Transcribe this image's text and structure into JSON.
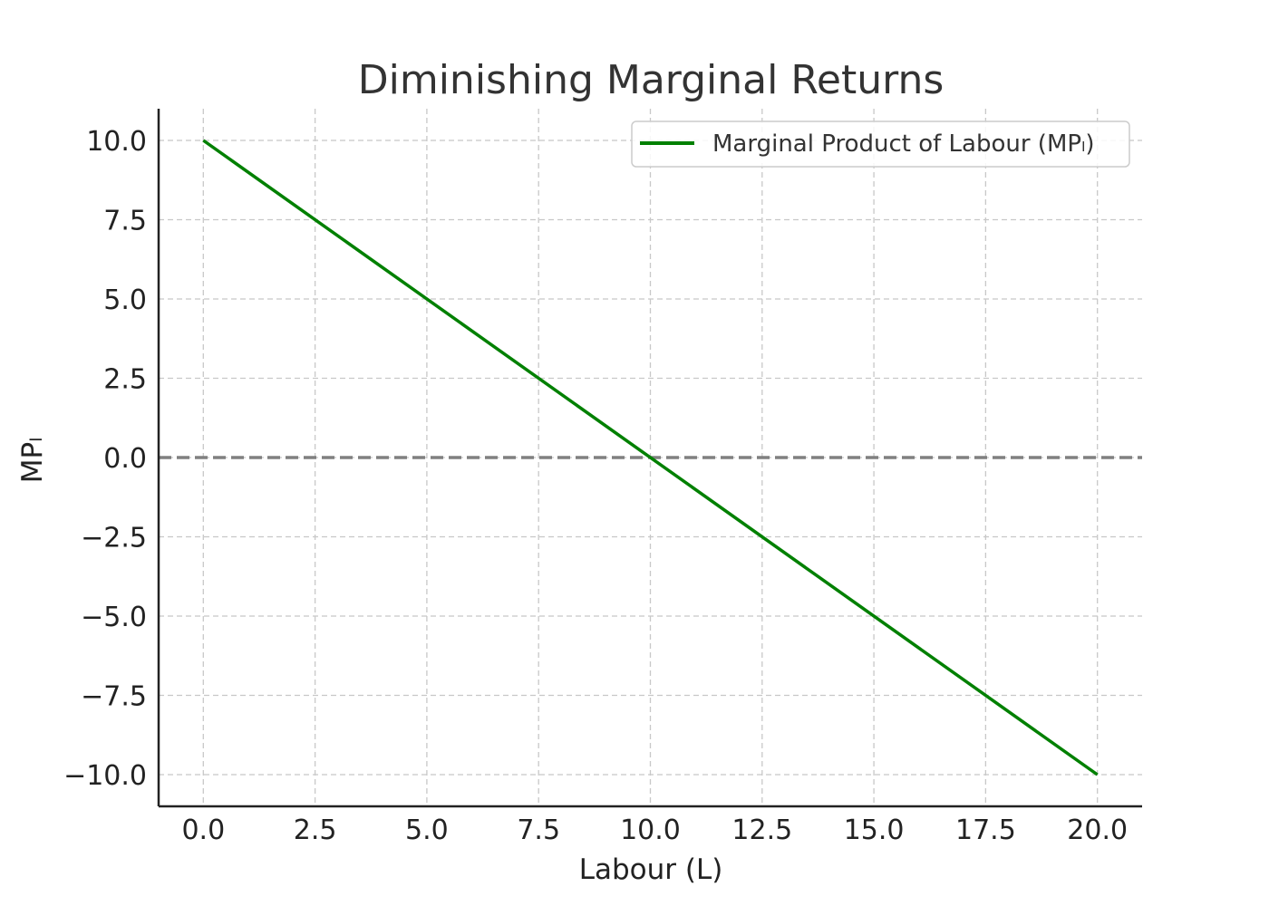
{
  "chart_data": {
    "type": "line",
    "title": "Diminishing Marginal Returns",
    "xlabel": "Labour (L)",
    "ylabel": "MPₗ",
    "xlim": [
      -1,
      21
    ],
    "ylim": [
      -11,
      11
    ],
    "x_ticks": [
      0,
      2.5,
      5,
      7.5,
      10,
      12.5,
      15,
      17.5,
      20
    ],
    "x_tick_labels": [
      "0.0",
      "2.5",
      "5.0",
      "7.5",
      "10.0",
      "12.5",
      "15.0",
      "17.5",
      "20.0"
    ],
    "y_ticks": [
      10,
      7.5,
      5,
      2.5,
      0,
      -2.5,
      -5,
      -7.5,
      -10
    ],
    "y_tick_labels": [
      "10.0",
      "7.5",
      "5.0",
      "2.5",
      "0.0",
      "−2.5",
      "−5.0",
      "−7.5",
      "−10.0"
    ],
    "grid": true,
    "legend_position": "top-right",
    "reference_line": {
      "y": 0,
      "style": "dashed",
      "color": "#808080"
    },
    "series": [
      {
        "name": "Marginal Product of Labour (MPₗ)",
        "color": "#008000",
        "x": [
          0,
          20
        ],
        "y": [
          10,
          -10
        ]
      }
    ]
  }
}
